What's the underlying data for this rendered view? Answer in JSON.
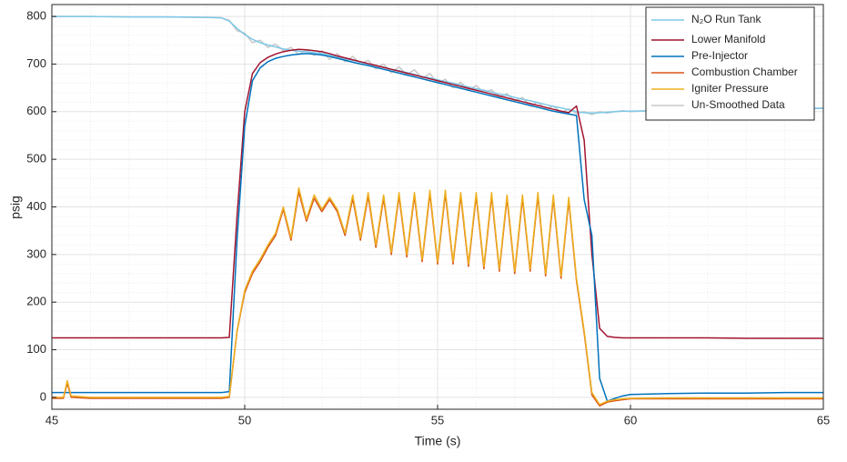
{
  "chart_data": {
    "type": "line",
    "x_label": "Time (s)",
    "y_label": "psig",
    "x": [
      45,
      45.3,
      45.4,
      45.5,
      46,
      47,
      48,
      49,
      49.4,
      49.6,
      49.8,
      50,
      50.2,
      50.4,
      50.6,
      50.8,
      51,
      51.2,
      51.4,
      51.6,
      51.8,
      52,
      52.2,
      52.4,
      52.6,
      52.8,
      53,
      53.2,
      53.4,
      53.6,
      53.8,
      54,
      54.2,
      54.4,
      54.6,
      54.8,
      55,
      55.2,
      55.4,
      55.6,
      55.8,
      56,
      56.2,
      56.4,
      56.6,
      56.8,
      57,
      57.2,
      57.4,
      57.6,
      57.8,
      58,
      58.2,
      58.4,
      58.6,
      58.8,
      59,
      59.2,
      59.4,
      59.6,
      59.8,
      60,
      61,
      62,
      63,
      64,
      65
    ],
    "series": [
      {
        "name": "N₂O Run Tank",
        "color": "#7ec8e8",
        "values": [
          800,
          800,
          800,
          800,
          800,
          799,
          799,
          798,
          797,
          790,
          775,
          762,
          752,
          745,
          740,
          736,
          732,
          729,
          727,
          726,
          724,
          722,
          719,
          715,
          711,
          708,
          704,
          700,
          697,
          693,
          689,
          686,
          682,
          678,
          674,
          671,
          667,
          663,
          660,
          656,
          652,
          648,
          645,
          641,
          637,
          634,
          630,
          626,
          623,
          619,
          615,
          611,
          608,
          604,
          600,
          598,
          597,
          598,
          599,
          600,
          601,
          601,
          603,
          604,
          605,
          606,
          607
        ]
      },
      {
        "name": "Lower Manifold",
        "color": "#a2142f",
        "values": [
          125,
          125,
          125,
          125,
          125,
          125,
          125,
          125,
          125,
          126,
          380,
          600,
          680,
          703,
          714,
          721,
          726,
          729,
          731,
          730,
          728,
          726,
          722,
          717,
          713,
          709,
          705,
          701,
          697,
          693,
          689,
          685,
          681,
          677,
          673,
          669,
          665,
          661,
          657,
          653,
          649,
          645,
          641,
          637,
          633,
          629,
          625,
          621,
          617,
          613,
          609,
          605,
          601,
          598,
          612,
          540,
          300,
          145,
          128,
          126,
          125,
          125,
          125,
          125,
          124,
          124,
          124
        ]
      },
      {
        "name": "Pre-Injector",
        "color": "#0072bd",
        "values": [
          10,
          10,
          10,
          10,
          10,
          10,
          10,
          10,
          10,
          12,
          330,
          570,
          665,
          692,
          705,
          712,
          716,
          719,
          721,
          722,
          721,
          719,
          716,
          712,
          708,
          704,
          700,
          697,
          693,
          689,
          685,
          681,
          677,
          673,
          669,
          665,
          661,
          657,
          653,
          649,
          645,
          641,
          637,
          633,
          629,
          625,
          621,
          617,
          613,
          609,
          605,
          601,
          598,
          595,
          592,
          415,
          340,
          40,
          -8,
          -2,
          3,
          6,
          8,
          9,
          9,
          10,
          10
        ]
      },
      {
        "name": "Combustion Chamber",
        "color": "#d95319",
        "values": [
          -2,
          -2,
          30,
          0,
          -2,
          -2,
          -2,
          -2,
          -2,
          0,
          138,
          220,
          260,
          285,
          315,
          340,
          395,
          330,
          432,
          370,
          418,
          390,
          415,
          390,
          340,
          418,
          330,
          423,
          315,
          418,
          300,
          423,
          295,
          423,
          285,
          428,
          280,
          428,
          280,
          423,
          275,
          423,
          270,
          423,
          265,
          418,
          260,
          418,
          265,
          423,
          255,
          418,
          250,
          413,
          245,
          135,
          5,
          -18,
          -10,
          -7,
          -5,
          -3,
          -3,
          -3,
          -3,
          -3,
          -3
        ]
      },
      {
        "name": "Igniter Pressure",
        "color": "#edb120",
        "values": [
          0,
          0,
          35,
          3,
          0,
          0,
          0,
          0,
          0,
          2,
          140,
          225,
          265,
          290,
          320,
          345,
          400,
          335,
          440,
          375,
          425,
          395,
          420,
          395,
          345,
          425,
          335,
          430,
          320,
          425,
          305,
          430,
          300,
          430,
          290,
          435,
          285,
          435,
          285,
          430,
          280,
          430,
          275,
          430,
          270,
          425,
          265,
          425,
          270,
          430,
          260,
          425,
          255,
          420,
          250,
          140,
          10,
          -15,
          -8,
          -5,
          -3,
          -2,
          -1,
          -1,
          -1,
          -1,
          -1
        ]
      },
      {
        "name": "Un-Smoothed Data",
        "color": "#c8c8c8",
        "values": [
          800,
          800,
          800,
          800,
          800,
          799,
          799,
          798,
          797,
          792,
          770,
          765,
          745,
          750,
          735,
          742,
          728,
          735,
          720,
          730,
          718,
          728,
          710,
          722,
          705,
          716,
          700,
          708,
          690,
          700,
          682,
          694,
          678,
          688,
          670,
          680,
          660,
          668,
          650,
          662,
          645,
          655,
          640,
          646,
          630,
          638,
          622,
          630,
          612,
          620,
          605,
          612,
          598,
          606,
          596,
          600,
          594,
          600,
          597,
          600,
          602,
          600,
          604,
          603,
          606,
          605,
          608
        ]
      }
    ],
    "xlim": [
      45,
      65
    ],
    "xticks": [
      45,
      50,
      55,
      60,
      65
    ],
    "ylim": [
      -25,
      825
    ],
    "yticks": [
      0,
      100,
      200,
      300,
      400,
      500,
      600,
      700,
      800
    ],
    "xminorticks": [
      46,
      47,
      48,
      49,
      51,
      52,
      53,
      54,
      56,
      57,
      58,
      59,
      61,
      62,
      63,
      64
    ],
    "yminorticks": [
      -20,
      20,
      40,
      60,
      80,
      120,
      140,
      160,
      180,
      220,
      240,
      260,
      280,
      320,
      340,
      360,
      380,
      420,
      440,
      460,
      480,
      520,
      540,
      560,
      580,
      620,
      640,
      660,
      680,
      720,
      740,
      760,
      780,
      820
    ],
    "grid": true,
    "minor_grid": true,
    "legend": "upper right"
  }
}
